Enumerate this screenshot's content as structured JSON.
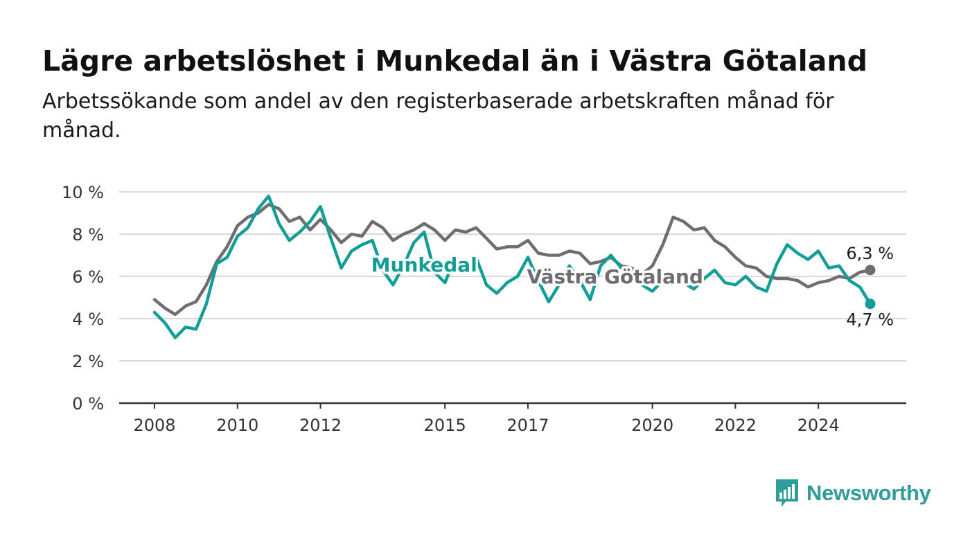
{
  "title": "Lägre arbetslöshet i Munkedal än i Västra Götaland",
  "subtitle": "Arbetssökande som andel av den registerbaserade arbetskraften månad för månad.",
  "brand": {
    "name": "Newsworthy",
    "color": "#2f9d98",
    "icon": "bar-chart-speech-bubble-icon"
  },
  "chart_data": {
    "type": "line",
    "xlabel": "",
    "ylabel": "",
    "ylim": [
      0,
      10
    ],
    "yticks": [
      0,
      2,
      4,
      6,
      8,
      10
    ],
    "ytick_labels": [
      "0 %",
      "2 %",
      "4 %",
      "6 %",
      "8 %",
      "10 %"
    ],
    "xlim": [
      2008,
      2025.25
    ],
    "xticks": [
      2008,
      2010,
      2012,
      2015,
      2017,
      2020,
      2022,
      2024
    ],
    "xtick_labels": [
      "2008",
      "2010",
      "2012",
      "2015",
      "2017",
      "2020",
      "2022",
      "2024"
    ],
    "grid": "horizontal",
    "legend": "inline labels",
    "series": [
      {
        "name": "Västra Götaland",
        "color": "#6e6d72",
        "end_label": "6,3 %",
        "points": [
          [
            2008.0,
            4.9
          ],
          [
            2008.25,
            4.5
          ],
          [
            2008.5,
            4.2
          ],
          [
            2008.75,
            4.6
          ],
          [
            2009.0,
            4.8
          ],
          [
            2009.25,
            5.6
          ],
          [
            2009.5,
            6.7
          ],
          [
            2009.75,
            7.4
          ],
          [
            2010.0,
            8.4
          ],
          [
            2010.25,
            8.8
          ],
          [
            2010.5,
            9.0
          ],
          [
            2010.75,
            9.4
          ],
          [
            2011.0,
            9.2
          ],
          [
            2011.25,
            8.6
          ],
          [
            2011.5,
            8.8
          ],
          [
            2011.75,
            8.2
          ],
          [
            2012.0,
            8.7
          ],
          [
            2012.25,
            8.2
          ],
          [
            2012.5,
            7.6
          ],
          [
            2012.75,
            8.0
          ],
          [
            2013.0,
            7.9
          ],
          [
            2013.25,
            8.6
          ],
          [
            2013.5,
            8.3
          ],
          [
            2013.75,
            7.7
          ],
          [
            2014.0,
            8.0
          ],
          [
            2014.25,
            8.2
          ],
          [
            2014.5,
            8.5
          ],
          [
            2014.75,
            8.2
          ],
          [
            2015.0,
            7.7
          ],
          [
            2015.25,
            8.2
          ],
          [
            2015.5,
            8.1
          ],
          [
            2015.75,
            8.3
          ],
          [
            2016.0,
            7.8
          ],
          [
            2016.25,
            7.3
          ],
          [
            2016.5,
            7.4
          ],
          [
            2016.75,
            7.4
          ],
          [
            2017.0,
            7.7
          ],
          [
            2017.25,
            7.1
          ],
          [
            2017.5,
            7.0
          ],
          [
            2017.75,
            7.0
          ],
          [
            2018.0,
            7.2
          ],
          [
            2018.25,
            7.1
          ],
          [
            2018.5,
            6.6
          ],
          [
            2018.75,
            6.7
          ],
          [
            2019.0,
            6.9
          ],
          [
            2019.25,
            6.5
          ],
          [
            2019.5,
            6.4
          ],
          [
            2019.75,
            6.1
          ],
          [
            2020.0,
            6.5
          ],
          [
            2020.25,
            7.5
          ],
          [
            2020.5,
            8.8
          ],
          [
            2020.75,
            8.6
          ],
          [
            2021.0,
            8.2
          ],
          [
            2021.25,
            8.3
          ],
          [
            2021.5,
            7.7
          ],
          [
            2021.75,
            7.4
          ],
          [
            2022.0,
            6.9
          ],
          [
            2022.25,
            6.5
          ],
          [
            2022.5,
            6.4
          ],
          [
            2022.75,
            6.0
          ],
          [
            2023.0,
            5.9
          ],
          [
            2023.25,
            5.9
          ],
          [
            2023.5,
            5.8
          ],
          [
            2023.75,
            5.5
          ],
          [
            2024.0,
            5.7
          ],
          [
            2024.25,
            5.8
          ],
          [
            2024.5,
            6.0
          ],
          [
            2024.75,
            5.9
          ],
          [
            2025.0,
            6.2
          ],
          [
            2025.25,
            6.3
          ]
        ]
      },
      {
        "name": "Munkedal",
        "color": "#129e96",
        "end_label": "4,7 %",
        "points": [
          [
            2008.0,
            4.3
          ],
          [
            2008.25,
            3.8
          ],
          [
            2008.5,
            3.1
          ],
          [
            2008.75,
            3.6
          ],
          [
            2009.0,
            3.5
          ],
          [
            2009.25,
            4.7
          ],
          [
            2009.5,
            6.6
          ],
          [
            2009.75,
            6.9
          ],
          [
            2010.0,
            7.9
          ],
          [
            2010.25,
            8.3
          ],
          [
            2010.5,
            9.2
          ],
          [
            2010.75,
            9.8
          ],
          [
            2011.0,
            8.5
          ],
          [
            2011.25,
            7.7
          ],
          [
            2011.5,
            8.1
          ],
          [
            2011.75,
            8.6
          ],
          [
            2012.0,
            9.3
          ],
          [
            2012.25,
            7.8
          ],
          [
            2012.5,
            6.4
          ],
          [
            2012.75,
            7.2
          ],
          [
            2013.0,
            7.5
          ],
          [
            2013.25,
            7.7
          ],
          [
            2013.5,
            6.3
          ],
          [
            2013.75,
            5.6
          ],
          [
            2014.0,
            6.5
          ],
          [
            2014.25,
            7.6
          ],
          [
            2014.5,
            8.1
          ],
          [
            2014.75,
            6.2
          ],
          [
            2015.0,
            5.7
          ],
          [
            2015.25,
            6.9
          ],
          [
            2015.5,
            6.3
          ],
          [
            2015.75,
            6.9
          ],
          [
            2016.0,
            5.6
          ],
          [
            2016.25,
            5.2
          ],
          [
            2016.5,
            5.7
          ],
          [
            2016.75,
            6.0
          ],
          [
            2017.0,
            6.9
          ],
          [
            2017.25,
            5.8
          ],
          [
            2017.5,
            4.8
          ],
          [
            2017.75,
            5.6
          ],
          [
            2018.0,
            6.5
          ],
          [
            2018.25,
            5.8
          ],
          [
            2018.5,
            4.9
          ],
          [
            2018.75,
            6.5
          ],
          [
            2019.0,
            7.0
          ],
          [
            2019.25,
            6.4
          ],
          [
            2019.5,
            6.2
          ],
          [
            2019.75,
            5.6
          ],
          [
            2020.0,
            5.3
          ],
          [
            2020.25,
            5.8
          ],
          [
            2020.5,
            6.0
          ],
          [
            2020.75,
            5.7
          ],
          [
            2021.0,
            5.4
          ],
          [
            2021.25,
            5.9
          ],
          [
            2021.5,
            6.3
          ],
          [
            2021.75,
            5.7
          ],
          [
            2022.0,
            5.6
          ],
          [
            2022.25,
            6.0
          ],
          [
            2022.5,
            5.5
          ],
          [
            2022.75,
            5.3
          ],
          [
            2023.0,
            6.6
          ],
          [
            2023.25,
            7.5
          ],
          [
            2023.5,
            7.1
          ],
          [
            2023.75,
            6.8
          ],
          [
            2024.0,
            7.2
          ],
          [
            2024.25,
            6.4
          ],
          [
            2024.5,
            6.5
          ],
          [
            2024.75,
            5.8
          ],
          [
            2025.0,
            5.5
          ],
          [
            2025.25,
            4.7
          ]
        ]
      }
    ]
  }
}
